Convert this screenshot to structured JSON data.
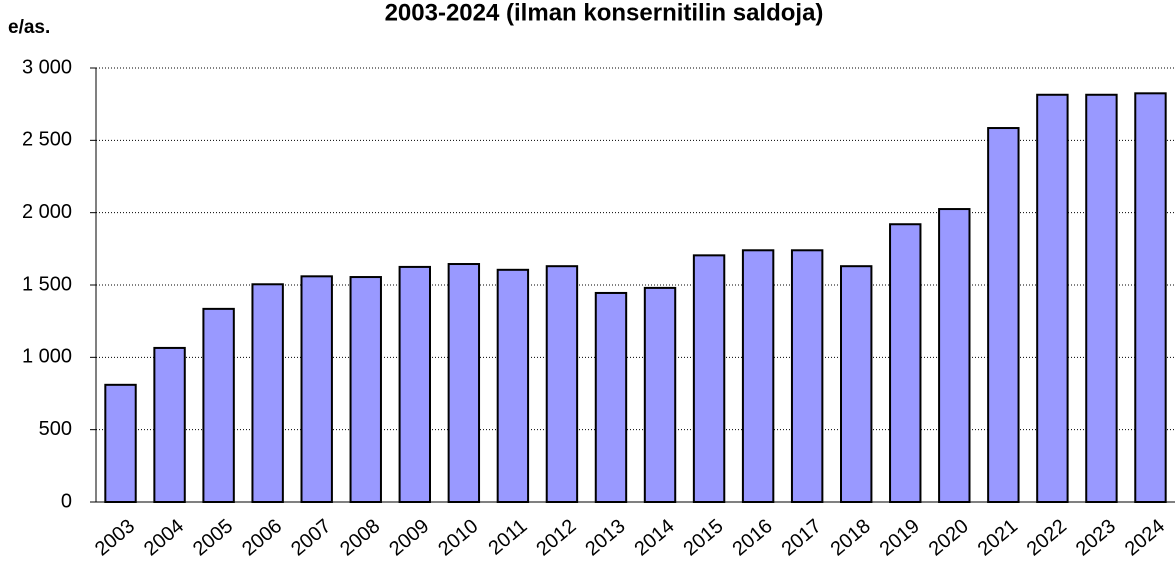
{
  "chart_data": {
    "type": "bar",
    "title": "2003-2024 (ilman konsernitilin saldoja)",
    "y_label": "e/as.",
    "categories": [
      "2003",
      "2004",
      "2005",
      "2006",
      "2007",
      "2008",
      "2009",
      "2010",
      "2011",
      "2012",
      "2013",
      "2014",
      "2015",
      "2016",
      "2017",
      "2018",
      "2019",
      "2020",
      "2021",
      "2022",
      "2023",
      "2024"
    ],
    "values": [
      810,
      1065,
      1335,
      1505,
      1560,
      1555,
      1625,
      1645,
      1605,
      1630,
      1445,
      1480,
      1705,
      1740,
      1740,
      1630,
      1920,
      2025,
      2585,
      2815,
      2815,
      2825
    ],
    "color": "#9999ff",
    "ylim": [
      0,
      3000
    ],
    "yticks": [
      0,
      500,
      {
        "value": 1000,
        "label": "1 000"
      },
      {
        "value": 1500,
        "label": "1 500"
      },
      {
        "value": 2000,
        "label": "2 000"
      },
      {
        "value": 2500,
        "label": "2 500"
      },
      {
        "value": 3000,
        "label": "3 000"
      }
    ],
    "grid": true
  }
}
